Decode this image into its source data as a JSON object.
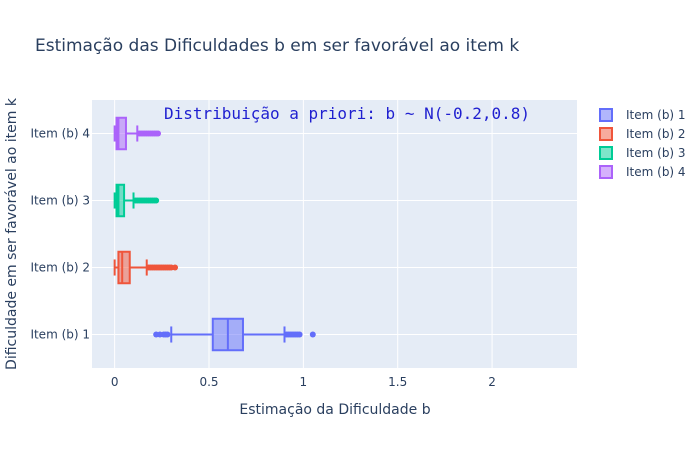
{
  "chart_data": {
    "type": "box",
    "orientation": "horizontal",
    "title": "Estimação das Dificuldades b em ser favorável ao item k",
    "xlabel": "Estimação da Dificuldade b",
    "ylabel": "Dificuldade em ser favorável ao item k",
    "xlim": [
      -0.12,
      2.45
    ],
    "xticks": [
      0,
      0.5,
      1,
      1.5,
      2
    ],
    "xtick_labels": [
      "0",
      "0.5",
      "1",
      "1.5",
      "2"
    ],
    "grid": true,
    "annotation": "Distribuição a priori: b ~ N(-0.2,0.8)",
    "legend_position": "right",
    "series": [
      {
        "name": "Item (b) 1",
        "color": "#636efa",
        "min": 0.3,
        "q1": 0.52,
        "median": 0.6,
        "q3": 0.68,
        "max": 0.9,
        "outliers": [
          0.22,
          0.24,
          0.26,
          0.27,
          0.28,
          0.91,
          0.92,
          0.93,
          0.94,
          0.95,
          0.96,
          0.97,
          0.98,
          1.05
        ]
      },
      {
        "name": "Item (b) 2",
        "color": "#ef553b",
        "min": 0.0,
        "q1": 0.02,
        "median": 0.04,
        "q3": 0.08,
        "max": 0.17,
        "outliers": [
          0.18,
          0.19,
          0.2,
          0.21,
          0.22,
          0.23,
          0.24,
          0.25,
          0.26,
          0.27,
          0.28,
          0.29,
          0.3,
          0.32
        ]
      },
      {
        "name": "Item (b) 3",
        "color": "#00cc96",
        "min": 0.0,
        "q1": 0.01,
        "median": 0.02,
        "q3": 0.05,
        "max": 0.1,
        "outliers": [
          0.11,
          0.12,
          0.13,
          0.14,
          0.15,
          0.16,
          0.17,
          0.18,
          0.19,
          0.2,
          0.21,
          0.22
        ]
      },
      {
        "name": "Item (b) 4",
        "color": "#ab63fa",
        "min": 0.0,
        "q1": 0.01,
        "median": 0.02,
        "q3": 0.06,
        "max": 0.12,
        "outliers": [
          0.13,
          0.14,
          0.15,
          0.16,
          0.17,
          0.18,
          0.19,
          0.2,
          0.21,
          0.22,
          0.23
        ]
      }
    ]
  }
}
